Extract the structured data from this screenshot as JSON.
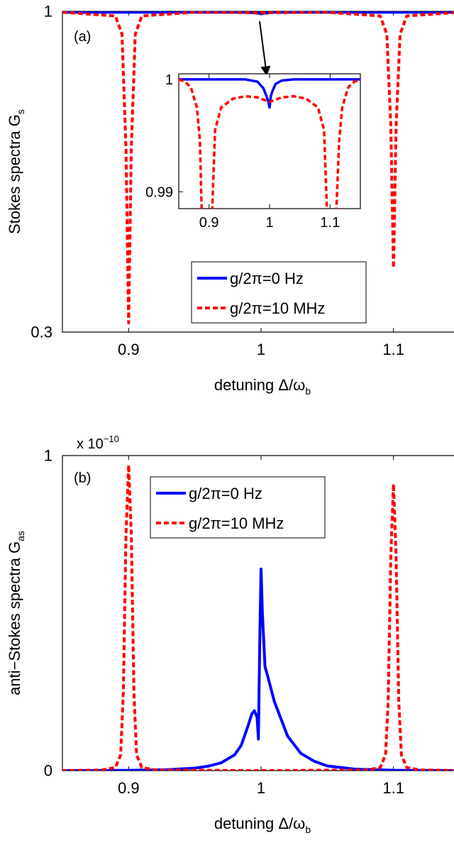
{
  "chart_data": [
    {
      "type": "line",
      "panel_label": "(a)",
      "ylabel": "Stokes spectra G",
      "ylabel_sub": "s",
      "xlabel": "detuning Δ/ω",
      "xlabel_sub": "b",
      "xlim": [
        0.85,
        1.15
      ],
      "ylim": [
        0.3,
        1.0
      ],
      "x_ticks": [
        0.9,
        1.0,
        1.1
      ],
      "x_tick_labels": [
        "0.9",
        "1",
        "1.1"
      ],
      "y_ticks": [
        0.3,
        1.0
      ],
      "y_tick_labels": [
        "0.3",
        "1"
      ],
      "legend_position": "center-bottom",
      "series": [
        {
          "name": "g/2π=0 Hz",
          "color": "#0000ff",
          "style": "solid",
          "x": [
            0.85,
            0.99,
            0.998,
            1.0,
            1.002,
            1.01,
            1.15
          ],
          "y": [
            0.998,
            0.998,
            0.996,
            0.995,
            0.996,
            0.998,
            0.998
          ]
        },
        {
          "name": "g/2π=10 MHz",
          "color": "#ff0000",
          "style": "dashed",
          "x": [
            0.85,
            0.89,
            0.895,
            0.898,
            0.9,
            0.902,
            0.905,
            0.91,
            0.95,
            1.0,
            1.05,
            1.09,
            1.095,
            1.098,
            1.1,
            1.102,
            1.105,
            1.11,
            1.15
          ],
          "y": [
            0.998,
            0.99,
            0.95,
            0.7,
            0.32,
            0.7,
            0.95,
            0.99,
            0.998,
            0.997,
            0.998,
            0.99,
            0.95,
            0.75,
            0.44,
            0.75,
            0.95,
            0.99,
            0.998
          ]
        }
      ],
      "inset": {
        "xlim": [
          0.85,
          1.15
        ],
        "ylim": [
          0.9885,
          1.0005
        ],
        "x_ticks": [
          0.9,
          1.0,
          1.1
        ],
        "x_tick_labels": [
          "0.9",
          "1",
          "1.1"
        ],
        "y_ticks": [
          0.99,
          1.0
        ],
        "y_tick_labels": [
          "0.99",
          "1"
        ],
        "series": [
          {
            "name": "g/2π=0 Hz",
            "color": "#0000ff",
            "style": "solid",
            "x": [
              0.85,
              0.96,
              0.98,
              0.99,
              0.995,
              0.998,
              1.0,
              1.002,
              1.005,
              1.01,
              1.02,
              1.04,
              1.15
            ],
            "y": [
              1.0,
              1.0,
              0.9998,
              0.9992,
              0.9985,
              0.998,
              0.9975,
              0.9985,
              0.999,
              0.9996,
              0.9999,
              1.0,
              1.0
            ]
          },
          {
            "name": "g/2π=10 MHz",
            "color": "#ff0000",
            "style": "dashed",
            "x": [
              0.85,
              0.86,
              0.87,
              0.88,
              0.885,
              0.888,
              0.905,
              0.91,
              0.92,
              0.94,
              0.96,
              0.98,
              1.0,
              1.02,
              1.04,
              1.06,
              1.08,
              1.09,
              1.095,
              1.11,
              1.115,
              1.12,
              1.13,
              1.14,
              1.15
            ],
            "y": [
              1.0,
              0.9998,
              0.9993,
              0.9975,
              0.9945,
              0.988,
              0.988,
              0.9955,
              0.9975,
              0.9983,
              0.9985,
              0.9984,
              0.998,
              0.9984,
              0.9985,
              0.9983,
              0.9975,
              0.9955,
              0.988,
              0.988,
              0.9945,
              0.9975,
              0.9993,
              0.9998,
              1.0
            ]
          }
        ]
      }
    },
    {
      "type": "line",
      "panel_label": "(b)",
      "ylabel": "anti−Stokes spectra G",
      "ylabel_sub": "as",
      "xlabel": "detuning Δ/ω",
      "xlabel_sub": "b",
      "y_multiplier": "x 10",
      "y_multiplier_exp": "−10",
      "xlim": [
        0.85,
        1.15
      ],
      "ylim": [
        0,
        1
      ],
      "x_ticks": [
        0.9,
        1.0,
        1.1
      ],
      "x_tick_labels": [
        "0.9",
        "1",
        "1.1"
      ],
      "y_ticks": [
        0,
        1
      ],
      "y_tick_labels": [
        "0",
        "1"
      ],
      "legend_position": "top-center",
      "series": [
        {
          "name": "g/2π=0 Hz",
          "color": "#0000ff",
          "style": "solid",
          "x": [
            0.85,
            0.9,
            0.93,
            0.95,
            0.96,
            0.97,
            0.98,
            0.985,
            0.99,
            0.993,
            0.995,
            0.997,
            0.998,
            0.999,
            1.0,
            1.001,
            1.003,
            1.005,
            1.01,
            1.02,
            1.03,
            1.04,
            1.05,
            1.07,
            1.1,
            1.15
          ],
          "y": [
            0,
            0.0008,
            0.003,
            0.008,
            0.014,
            0.025,
            0.05,
            0.08,
            0.14,
            0.18,
            0.19,
            0.17,
            0.1,
            0.4,
            0.64,
            0.5,
            0.33,
            0.3,
            0.22,
            0.11,
            0.055,
            0.03,
            0.015,
            0.005,
            0.001,
            0
          ]
        },
        {
          "name": "g/2π=10 MHz",
          "color": "#ff0000",
          "style": "dashed",
          "x": [
            0.85,
            0.88,
            0.89,
            0.894,
            0.896,
            0.898,
            0.9,
            0.902,
            0.904,
            0.906,
            0.91,
            0.92,
            1.0,
            1.08,
            1.09,
            1.094,
            1.096,
            1.098,
            1.1,
            1.102,
            1.104,
            1.106,
            1.11,
            1.12,
            1.15
          ],
          "y": [
            0,
            0.002,
            0.01,
            0.05,
            0.25,
            0.75,
            0.97,
            0.75,
            0.25,
            0.05,
            0.01,
            0.002,
            0,
            0.002,
            0.01,
            0.05,
            0.22,
            0.68,
            0.91,
            0.68,
            0.22,
            0.05,
            0.01,
            0.002,
            0
          ]
        }
      ]
    }
  ]
}
